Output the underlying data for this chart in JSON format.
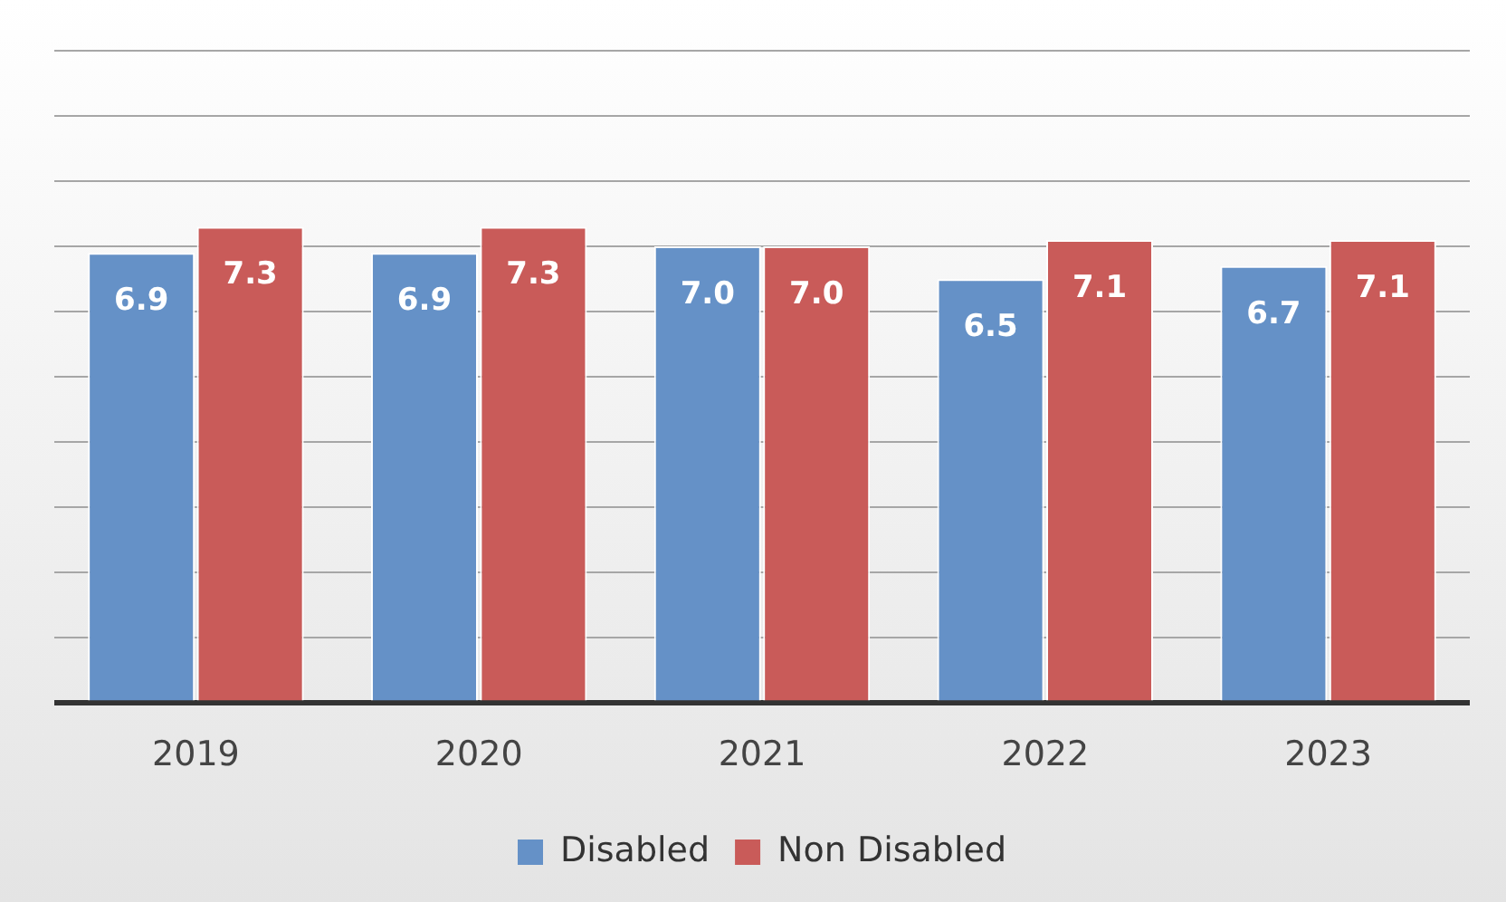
{
  "chart_data": {
    "type": "bar",
    "categories": [
      "2019",
      "2020",
      "2021",
      "2022",
      "2023"
    ],
    "series": [
      {
        "name": "Disabled",
        "color": "#6591c7",
        "values": [
          6.9,
          6.9,
          7.0,
          6.5,
          6.7
        ],
        "value_labels": [
          "6.9",
          "6.9",
          "7.0",
          "6.5",
          "6.7"
        ]
      },
      {
        "name": "Non Disabled",
        "color": "#c95b59",
        "values": [
          7.3,
          7.3,
          7.0,
          7.1,
          7.1
        ],
        "value_labels": [
          "7.3",
          "7.3",
          "7.0",
          "7.1",
          "7.1"
        ]
      }
    ],
    "ylim": [
      0,
      10
    ],
    "yticks": [
      {
        "value": 0,
        "label": null
      },
      {
        "value": 1,
        "label": null
      },
      {
        "value": 2,
        "label": null
      },
      {
        "value": 3,
        "label": null
      },
      {
        "value": 4,
        "label": null
      },
      {
        "value": 5,
        "label": null
      },
      {
        "value": 6,
        "label": null
      },
      {
        "value": 7,
        "label": null
      },
      {
        "value": 8,
        "label": null
      },
      {
        "value": 9,
        "label": null
      },
      {
        "value": 10,
        "label": null
      }
    ],
    "grid": "y",
    "tick_labels": "x",
    "legend": "bottom"
  }
}
